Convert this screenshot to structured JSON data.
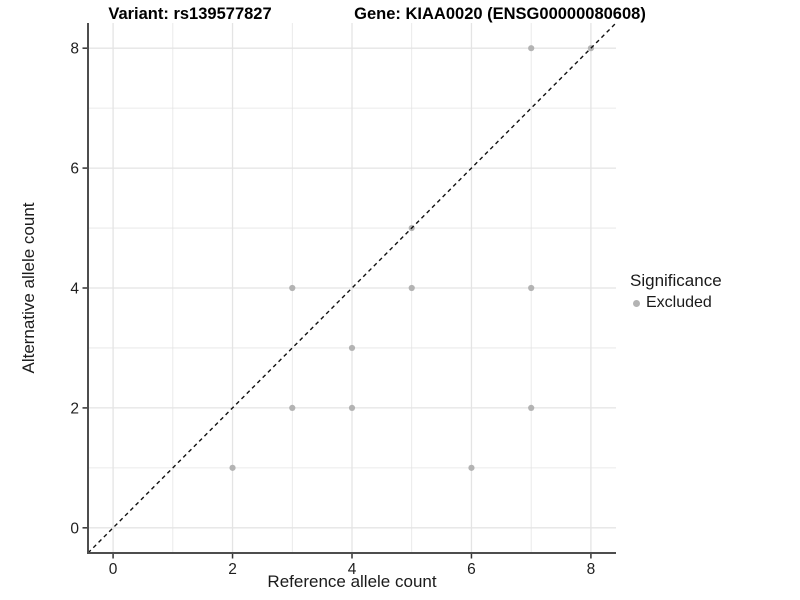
{
  "header": {
    "title_left": "Variant: rs139577827",
    "title_right": "Gene: KIAA0020 (ENSG00000080608)"
  },
  "legend": {
    "title": "Significance",
    "items": [
      {
        "label": "Excluded",
        "marker_color": "#b3b3b3"
      }
    ]
  },
  "chart_data": {
    "type": "scatter",
    "titles": [
      "Variant: rs139577827",
      "Gene: KIAA0020 (ENSG00000080608)"
    ],
    "xlabel": "Reference allele count",
    "ylabel": "Alternative allele count",
    "xlim": [
      -0.42,
      8.42
    ],
    "ylim": [
      -0.42,
      8.42
    ],
    "x_ticks": [
      0,
      2,
      4,
      6,
      8
    ],
    "y_ticks": [
      0,
      2,
      4,
      6,
      8
    ],
    "grid": {
      "major": [
        0,
        2,
        4,
        6,
        8
      ],
      "minor": [
        1,
        3,
        5,
        7
      ],
      "visible": true
    },
    "reference_line": {
      "style": "dashed",
      "slope": 1,
      "intercept": 0,
      "color": "#111111"
    },
    "legend_title": "Significance",
    "legend_position": "right",
    "series": [
      {
        "name": "Excluded",
        "color": "#b3b3b3",
        "points": [
          [
            2,
            1
          ],
          [
            3,
            2
          ],
          [
            3,
            4
          ],
          [
            4,
            2
          ],
          [
            4,
            3
          ],
          [
            5,
            4
          ],
          [
            5,
            5
          ],
          [
            6,
            1
          ],
          [
            7,
            2
          ],
          [
            7,
            4
          ],
          [
            7,
            8
          ],
          [
            8,
            8
          ]
        ]
      }
    ]
  },
  "colors": {
    "grid": "#e4e4e4",
    "axis_line": "#4d4d4d",
    "tick": "#333333",
    "tick_text": "#1f1f1f",
    "point": "#b3b3b3"
  }
}
